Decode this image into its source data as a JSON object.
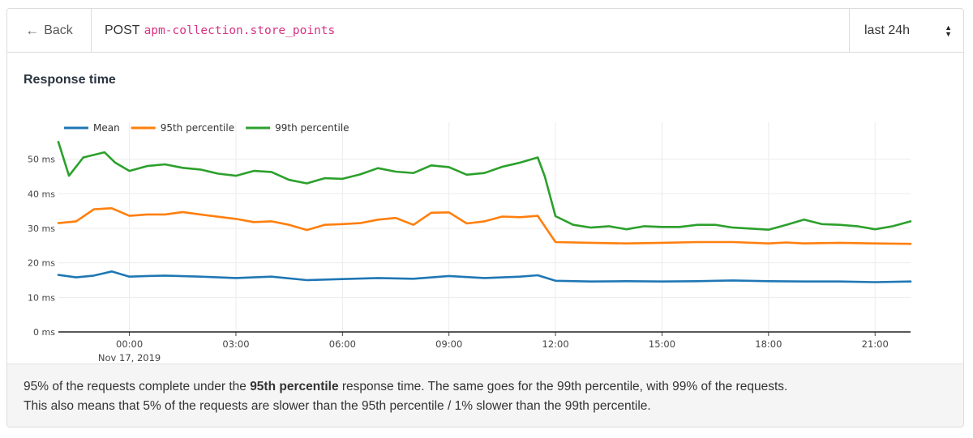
{
  "header": {
    "back_label": "Back",
    "method": "POST",
    "endpoint": "apm-collection.store_points",
    "time_range": "last 24h"
  },
  "section": {
    "title": "Response time"
  },
  "footer": {
    "line1_pre": "95% of the requests complete under the ",
    "line1_bold": "95th percentile",
    "line1_post": " response time. The same goes for the 99th percentile, with 99% of the requests.",
    "line2": "This also means that 5% of the requests are slower than the 95th percentile / 1% slower than the 99th percentile."
  },
  "colors": {
    "mean": "#1f77b4",
    "p95": "#ff7f0e",
    "p99": "#2ca02c",
    "endpoint_text": "#d63384"
  },
  "icons": {
    "back": "arrow-left-icon",
    "select": "updown-caret-icon"
  },
  "chart_data": {
    "type": "line",
    "x_axis": {
      "ticks": [
        "00:00",
        "03:00",
        "06:00",
        "09:00",
        "12:00",
        "15:00",
        "18:00",
        "21:00"
      ],
      "tick_hours": [
        0,
        3,
        6,
        9,
        12,
        15,
        18,
        21
      ],
      "sub_label": "Nov 17, 2019",
      "range_hours": [
        -2,
        22
      ]
    },
    "y_axis": {
      "ticks": [
        0,
        10,
        20,
        30,
        40,
        50
      ],
      "unit": "ms",
      "ylim": [
        0,
        56
      ]
    },
    "grid": true,
    "legend": "top-left",
    "series": [
      {
        "name": "Mean",
        "key": "mean",
        "points": [
          [
            -2,
            16.5
          ],
          [
            -1.5,
            15.8
          ],
          [
            -1,
            16.3
          ],
          [
            -0.5,
            17.5
          ],
          [
            0,
            16
          ],
          [
            0.5,
            16.2
          ],
          [
            1,
            16.3
          ],
          [
            2,
            16
          ],
          [
            3,
            15.6
          ],
          [
            4,
            16
          ],
          [
            5,
            15
          ],
          [
            6,
            15.3
          ],
          [
            7,
            15.6
          ],
          [
            8,
            15.4
          ],
          [
            9,
            16.2
          ],
          [
            10,
            15.6
          ],
          [
            11,
            16
          ],
          [
            11.5,
            16.4
          ],
          [
            12,
            14.8
          ],
          [
            13,
            14.6
          ],
          [
            14,
            14.7
          ],
          [
            15,
            14.6
          ],
          [
            16,
            14.7
          ],
          [
            17,
            14.9
          ],
          [
            18,
            14.7
          ],
          [
            19,
            14.6
          ],
          [
            20,
            14.6
          ],
          [
            21,
            14.4
          ],
          [
            22,
            14.6
          ]
        ]
      },
      {
        "name": "95th percentile",
        "key": "p95",
        "points": [
          [
            -2,
            31.5
          ],
          [
            -1.5,
            32
          ],
          [
            -1,
            35.5
          ],
          [
            -0.5,
            35.8
          ],
          [
            0,
            33.6
          ],
          [
            0.5,
            34
          ],
          [
            1,
            34
          ],
          [
            1.5,
            34.7
          ],
          [
            2,
            34
          ],
          [
            3,
            32.7
          ],
          [
            3.5,
            31.8
          ],
          [
            4,
            32
          ],
          [
            4.5,
            31
          ],
          [
            5,
            29.5
          ],
          [
            5.5,
            31
          ],
          [
            6,
            31.2
          ],
          [
            6.5,
            31.5
          ],
          [
            7,
            32.5
          ],
          [
            7.5,
            33
          ],
          [
            8,
            31
          ],
          [
            8.5,
            34.5
          ],
          [
            9,
            34.6
          ],
          [
            9.5,
            31.4
          ],
          [
            10,
            32
          ],
          [
            10.5,
            33.4
          ],
          [
            11,
            33.2
          ],
          [
            11.5,
            33.6
          ],
          [
            12,
            26
          ],
          [
            13,
            25.8
          ],
          [
            14,
            25.6
          ],
          [
            15,
            25.8
          ],
          [
            16,
            26
          ],
          [
            17,
            26
          ],
          [
            18,
            25.6
          ],
          [
            18.5,
            25.9
          ],
          [
            19,
            25.6
          ],
          [
            20,
            25.8
          ],
          [
            21,
            25.6
          ],
          [
            22,
            25.5
          ]
        ]
      },
      {
        "name": "99th percentile",
        "key": "p99",
        "points": [
          [
            -2,
            55
          ],
          [
            -1.7,
            45.2
          ],
          [
            -1.3,
            50.5
          ],
          [
            -0.7,
            52
          ],
          [
            -0.4,
            49
          ],
          [
            0,
            46.6
          ],
          [
            0.5,
            48
          ],
          [
            1,
            48.5
          ],
          [
            1.5,
            47.5
          ],
          [
            2,
            47
          ],
          [
            2.5,
            45.8
          ],
          [
            3,
            45.2
          ],
          [
            3.5,
            46.6
          ],
          [
            4,
            46.3
          ],
          [
            4.5,
            44
          ],
          [
            5,
            43
          ],
          [
            5.5,
            44.5
          ],
          [
            6,
            44.3
          ],
          [
            6.5,
            45.6
          ],
          [
            7,
            47.4
          ],
          [
            7.5,
            46.4
          ],
          [
            8,
            46
          ],
          [
            8.5,
            48.2
          ],
          [
            9,
            47.7
          ],
          [
            9.5,
            45.5
          ],
          [
            10,
            46
          ],
          [
            10.5,
            47.8
          ],
          [
            11,
            49
          ],
          [
            11.5,
            50.5
          ],
          [
            11.7,
            45
          ],
          [
            12,
            33.5
          ],
          [
            12.5,
            31
          ],
          [
            13,
            30.2
          ],
          [
            13.5,
            30.6
          ],
          [
            14,
            29.7
          ],
          [
            14.5,
            30.6
          ],
          [
            15,
            30.4
          ],
          [
            15.5,
            30.4
          ],
          [
            16,
            31
          ],
          [
            16.5,
            31
          ],
          [
            17,
            30.2
          ],
          [
            18,
            29.6
          ],
          [
            18.5,
            31
          ],
          [
            19,
            32.5
          ],
          [
            19.5,
            31.2
          ],
          [
            20,
            31
          ],
          [
            20.5,
            30.6
          ],
          [
            21,
            29.7
          ],
          [
            21.5,
            30.6
          ],
          [
            22,
            32
          ]
        ]
      }
    ]
  }
}
